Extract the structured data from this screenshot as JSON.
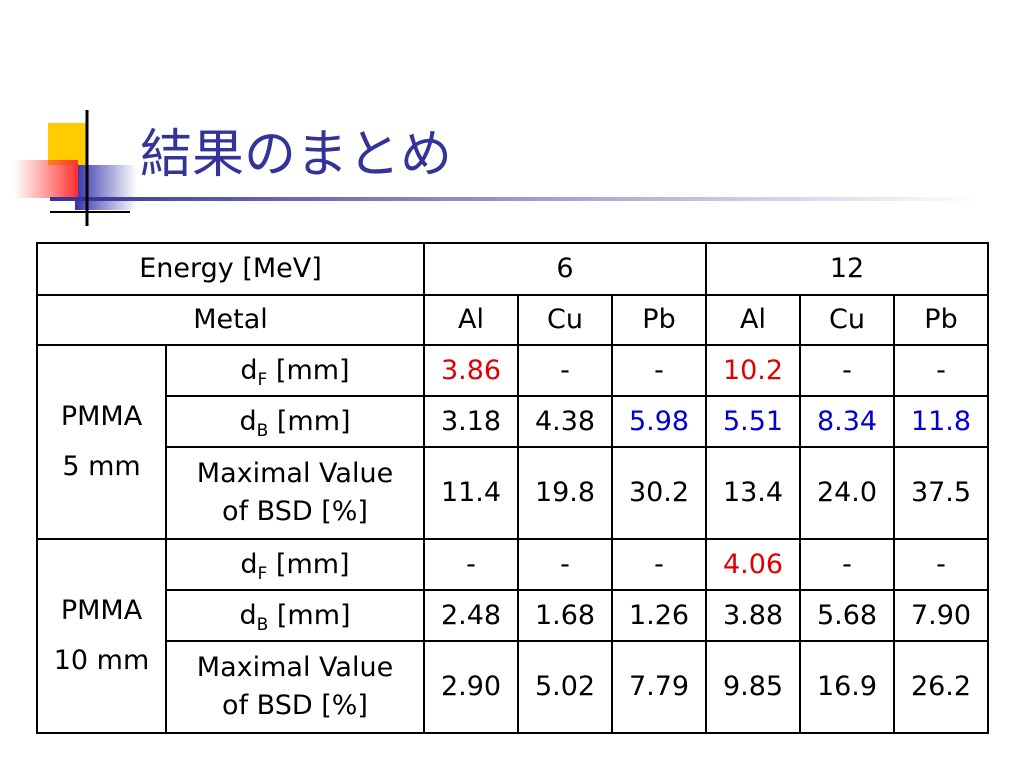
{
  "title": "結果のまとめ",
  "table": {
    "header": [
      [
        "Energy [MeV]",
        "6",
        "12"
      ],
      [
        "Metal",
        "Al",
        "Cu",
        "Pb",
        "Al",
        "Cu",
        "Pb"
      ]
    ],
    "groups": [
      {
        "label": [
          "PMMA",
          "5 mm"
        ],
        "rows": [
          {
            "param": {
              "symbol": "d",
              "sub": "F",
              "unit": "[mm]"
            },
            "cells": [
              {
                "text": "3.86",
                "color": "#e00000"
              },
              "-",
              "-",
              {
                "text": "10.2",
                "color": "#e00000"
              },
              "-",
              "-"
            ]
          },
          {
            "param": {
              "symbol": "d",
              "sub": "B",
              "unit": "[mm]"
            },
            "cells": [
              "3.18",
              "4.38",
              {
                "text": "5.98",
                "color": "#0000d0"
              },
              {
                "text": "5.51",
                "color": "#0000d0"
              },
              {
                "text": "8.34",
                "color": "#0000d0"
              },
              {
                "text": "11.8",
                "color": "#0000d0"
              }
            ]
          },
          {
            "param": {
              "lines": [
                "Maximal Value",
                "of BSD [%]"
              ]
            },
            "cells": [
              "11.4",
              "19.8",
              "30.2",
              "13.4",
              "24.0",
              "37.5"
            ]
          }
        ]
      },
      {
        "label": [
          "PMMA",
          "10 mm"
        ],
        "rows": [
          {
            "param": {
              "symbol": "d",
              "sub": "F",
              "unit": "[mm]"
            },
            "cells": [
              "-",
              "-",
              "-",
              {
                "text": "4.06",
                "color": "#e00000"
              },
              "-",
              "-"
            ]
          },
          {
            "param": {
              "symbol": "d",
              "sub": "B",
              "unit": "[mm]"
            },
            "cells": [
              "2.48",
              "1.68",
              "1.26",
              "3.88",
              "5.68",
              "7.90"
            ]
          },
          {
            "param": {
              "lines": [
                "Maximal Value",
                "of BSD [%]"
              ]
            },
            "cells": [
              "2.90",
              "5.02",
              "7.79",
              "9.85",
              "16.9",
              "26.2"
            ]
          }
        ]
      }
    ]
  }
}
